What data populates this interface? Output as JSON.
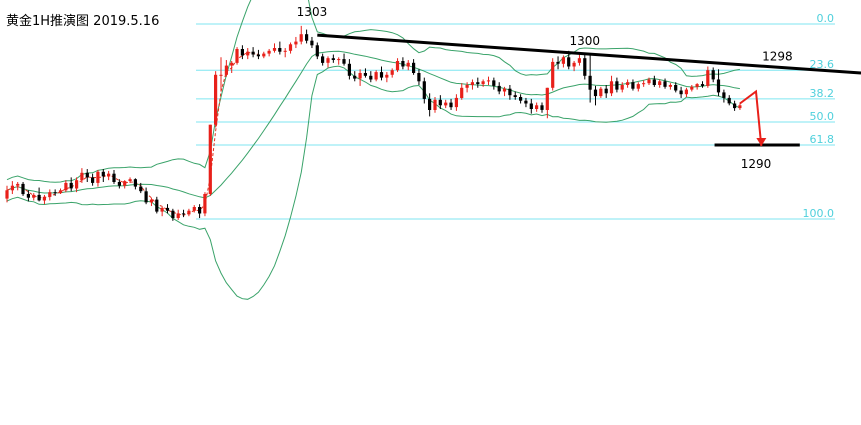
{
  "chart_data": {
    "type": "candlestick",
    "title": "黄金1H推演图 2019.5.16",
    "y_range": [
      1260,
      1306
    ],
    "fib_levels": [
      {
        "label": "0.0",
        "price": 1303.4
      },
      {
        "label": "23.6",
        "price": 1298.4
      },
      {
        "label": "38.2",
        "price": 1295.3
      },
      {
        "label": "50.0",
        "price": 1292.8
      },
      {
        "label": "61.8",
        "price": 1290.3
      },
      {
        "label": "100.0",
        "price": 1282.3
      }
    ],
    "annotations": [
      {
        "text": "1303",
        "price": 1303.6,
        "bar": 57
      },
      {
        "text": "1300",
        "price": 1300.5,
        "bar": 108
      },
      {
        "text": "1298",
        "price": 1298.8,
        "bar": 144
      },
      {
        "text": "1290",
        "price": 1290.0,
        "bar": 140
      }
    ],
    "trendline": {
      "from": {
        "bar": 58,
        "price": 1302.2
      },
      "to": {
        "bar": 152,
        "price": 1298.4
      }
    },
    "support_line": {
      "from_bar": 133,
      "to_bar": 148,
      "price": 1290.3
    },
    "projection": [
      {
        "bar": 137,
        "price": 1294.8
      },
      {
        "bar": 140,
        "price": 1296.1
      },
      {
        "bar": 141,
        "price": 1290.2
      }
    ],
    "candles": [
      [
        1284.5,
        1285.9,
        1284.1,
        1285.4
      ],
      [
        1285.4,
        1286.4,
        1285.0,
        1285.9
      ],
      [
        1285.9,
        1286.3,
        1285.4,
        1286.1
      ],
      [
        1286.1,
        1286.3,
        1284.8,
        1285.0
      ],
      [
        1285.0,
        1285.4,
        1284.2,
        1284.6
      ],
      [
        1284.6,
        1285.1,
        1284.3,
        1284.9
      ],
      [
        1284.9,
        1285.7,
        1284.2,
        1284.3
      ],
      [
        1284.3,
        1284.9,
        1283.9,
        1284.7
      ],
      [
        1284.7,
        1285.5,
        1284.3,
        1285.2
      ],
      [
        1285.2,
        1285.5,
        1284.8,
        1285.1
      ],
      [
        1285.1,
        1285.6,
        1285.0,
        1285.4
      ],
      [
        1285.4,
        1286.5,
        1285.2,
        1286.2
      ],
      [
        1286.2,
        1286.8,
        1285.3,
        1285.6
      ],
      [
        1285.6,
        1286.8,
        1285.2,
        1286.5
      ],
      [
        1286.5,
        1287.8,
        1286.2,
        1287.3
      ],
      [
        1287.3,
        1287.7,
        1286.3,
        1286.8
      ],
      [
        1286.8,
        1287.2,
        1285.9,
        1286.2
      ],
      [
        1286.2,
        1287.6,
        1285.8,
        1287.4
      ],
      [
        1287.4,
        1287.7,
        1286.3,
        1286.9
      ],
      [
        1286.9,
        1287.5,
        1286.5,
        1287.2
      ],
      [
        1287.2,
        1287.6,
        1286.1,
        1286.3
      ],
      [
        1286.3,
        1286.6,
        1285.6,
        1285.9
      ],
      [
        1285.9,
        1286.5,
        1285.6,
        1286.4
      ],
      [
        1286.4,
        1286.8,
        1286.2,
        1286.6
      ],
      [
        1286.6,
        1286.7,
        1285.5,
        1285.8
      ],
      [
        1285.8,
        1286.2,
        1285.1,
        1285.3
      ],
      [
        1285.3,
        1285.7,
        1283.9,
        1284.1
      ],
      [
        1284.1,
        1284.6,
        1283.7,
        1284.4
      ],
      [
        1284.4,
        1284.7,
        1282.9,
        1283.1
      ],
      [
        1283.1,
        1283.6,
        1282.6,
        1283.5
      ],
      [
        1283.5,
        1283.9,
        1282.9,
        1283.2
      ],
      [
        1283.2,
        1283.4,
        1282.1,
        1282.4
      ],
      [
        1282.4,
        1283.3,
        1282.2,
        1282.9
      ],
      [
        1282.9,
        1283.3,
        1282.5,
        1282.8
      ],
      [
        1282.8,
        1283.4,
        1282.6,
        1283.2
      ],
      [
        1283.2,
        1283.8,
        1283.0,
        1283.6
      ],
      [
        1283.6,
        1283.9,
        1282.4,
        1282.9
      ],
      [
        1282.9,
        1285.2,
        1282.6,
        1285.0
      ],
      [
        1285.0,
        1292.5,
        1284.8,
        1292.5
      ],
      [
        1292.5,
        1298.3,
        1292.2,
        1297.9
      ],
      [
        1297.9,
        1299.8,
        1296.1,
        1297.9
      ],
      [
        1297.9,
        1299.5,
        1297.7,
        1298.9
      ],
      [
        1298.9,
        1299.4,
        1298.1,
        1299.2
      ],
      [
        1299.2,
        1300.9,
        1299.0,
        1300.7
      ],
      [
        1300.7,
        1301.1,
        1299.6,
        1300.0
      ],
      [
        1300.0,
        1300.8,
        1299.6,
        1300.4
      ],
      [
        1300.4,
        1300.9,
        1299.8,
        1300.1
      ],
      [
        1300.1,
        1300.6,
        1299.6,
        1299.9
      ],
      [
        1299.9,
        1300.4,
        1299.7,
        1300.2
      ],
      [
        1300.2,
        1300.7,
        1299.9,
        1300.5
      ],
      [
        1300.5,
        1301.3,
        1300.3,
        1300.8
      ],
      [
        1300.8,
        1301.5,
        1300.1,
        1300.4
      ],
      [
        1300.4,
        1300.8,
        1299.8,
        1300.5
      ],
      [
        1300.5,
        1301.4,
        1300.2,
        1301.2
      ],
      [
        1301.2,
        1302.0,
        1300.8,
        1301.5
      ],
      [
        1301.5,
        1303.2,
        1301.2,
        1302.3
      ],
      [
        1302.3,
        1302.8,
        1301.3,
        1301.6
      ],
      [
        1301.6,
        1302.0,
        1300.8,
        1301.1
      ],
      [
        1301.1,
        1301.4,
        1299.6,
        1299.9
      ],
      [
        1299.9,
        1300.2,
        1298.9,
        1299.2
      ],
      [
        1299.2,
        1299.9,
        1298.7,
        1299.7
      ],
      [
        1299.7,
        1300.1,
        1299.2,
        1299.5
      ],
      [
        1299.5,
        1299.8,
        1299.0,
        1299.6
      ],
      [
        1299.6,
        1300.2,
        1298.9,
        1299.1
      ],
      [
        1299.1,
        1299.6,
        1297.4,
        1297.8
      ],
      [
        1297.8,
        1298.3,
        1297.2,
        1297.5
      ],
      [
        1297.5,
        1298.5,
        1296.7,
        1298.1
      ],
      [
        1298.1,
        1298.6,
        1297.6,
        1297.8
      ],
      [
        1297.8,
        1298.3,
        1297.1,
        1297.4
      ],
      [
        1297.4,
        1298.4,
        1297.2,
        1298.2
      ],
      [
        1298.2,
        1298.8,
        1297.3,
        1297.6
      ],
      [
        1297.6,
        1298.2,
        1297.1,
        1297.9
      ],
      [
        1297.9,
        1298.6,
        1297.6,
        1298.4
      ],
      [
        1298.4,
        1299.7,
        1298.2,
        1299.4
      ],
      [
        1299.4,
        1299.8,
        1298.5,
        1298.8
      ],
      [
        1298.8,
        1299.5,
        1298.4,
        1299.2
      ],
      [
        1299.2,
        1299.6,
        1297.9,
        1298.1
      ],
      [
        1298.1,
        1298.5,
        1296.8,
        1297.2
      ],
      [
        1297.2,
        1297.6,
        1294.8,
        1295.3
      ],
      [
        1295.3,
        1295.9,
        1293.4,
        1294.1
      ],
      [
        1294.1,
        1295.5,
        1293.8,
        1295.2
      ],
      [
        1295.2,
        1295.7,
        1294.2,
        1294.6
      ],
      [
        1294.6,
        1295.2,
        1294.3,
        1294.9
      ],
      [
        1294.9,
        1295.3,
        1294.1,
        1294.4
      ],
      [
        1294.4,
        1295.8,
        1294.0,
        1295.4
      ],
      [
        1295.4,
        1297.0,
        1295.2,
        1296.5
      ],
      [
        1296.5,
        1297.1,
        1296.0,
        1296.8
      ],
      [
        1296.8,
        1297.4,
        1296.3,
        1297.1
      ],
      [
        1297.1,
        1297.6,
        1296.5,
        1296.9
      ],
      [
        1296.9,
        1297.4,
        1296.6,
        1297.2
      ],
      [
        1297.2,
        1297.7,
        1296.8,
        1297.3
      ],
      [
        1297.3,
        1297.6,
        1296.3,
        1296.7
      ],
      [
        1296.7,
        1297.1,
        1295.8,
        1296.1
      ],
      [
        1296.1,
        1296.6,
        1295.6,
        1296.4
      ],
      [
        1296.4,
        1296.8,
        1295.2,
        1295.7
      ],
      [
        1295.7,
        1296.1,
        1295.2,
        1295.5
      ],
      [
        1295.5,
        1295.8,
        1294.8,
        1295.1
      ],
      [
        1295.1,
        1295.4,
        1294.4,
        1294.8
      ],
      [
        1294.8,
        1295.3,
        1293.7,
        1294.2
      ],
      [
        1294.2,
        1294.9,
        1293.9,
        1294.6
      ],
      [
        1294.6,
        1294.9,
        1293.8,
        1294.1
      ],
      [
        1294.1,
        1296.5,
        1293.2,
        1296.5
      ],
      [
        1296.5,
        1299.7,
        1296.2,
        1299.3
      ],
      [
        1299.3,
        1299.9,
        1298.5,
        1299.1
      ],
      [
        1299.1,
        1300.0,
        1298.7,
        1299.8
      ],
      [
        1299.8,
        1300.5,
        1298.5,
        1298.8
      ],
      [
        1298.8,
        1299.4,
        1298.3,
        1299.2
      ],
      [
        1299.2,
        1300.2,
        1298.9,
        1299.7
      ],
      [
        1299.7,
        1300.3,
        1297.4,
        1297.8
      ],
      [
        1297.8,
        1300.0,
        1294.9,
        1296.3
      ],
      [
        1296.3,
        1296.7,
        1294.6,
        1295.6
      ],
      [
        1295.6,
        1296.6,
        1295.4,
        1296.4
      ],
      [
        1296.4,
        1296.8,
        1295.4,
        1295.9
      ],
      [
        1295.9,
        1297.8,
        1295.6,
        1297.2
      ],
      [
        1297.2,
        1297.6,
        1296.0,
        1296.3
      ],
      [
        1296.3,
        1297.1,
        1296.0,
        1296.8
      ],
      [
        1296.8,
        1297.4,
        1296.5,
        1297.1
      ],
      [
        1297.1,
        1297.4,
        1296.2,
        1296.4
      ],
      [
        1296.4,
        1297.1,
        1296.1,
        1296.9
      ],
      [
        1296.9,
        1297.3,
        1296.6,
        1297.0
      ],
      [
        1297.0,
        1297.6,
        1296.8,
        1297.4
      ],
      [
        1297.4,
        1297.8,
        1296.6,
        1296.8
      ],
      [
        1296.8,
        1297.4,
        1296.5,
        1297.2
      ],
      [
        1297.2,
        1297.5,
        1296.4,
        1296.6
      ],
      [
        1296.6,
        1297.0,
        1296.3,
        1296.8
      ],
      [
        1296.8,
        1297.1,
        1296.0,
        1296.2
      ],
      [
        1296.2,
        1296.6,
        1295.4,
        1295.8
      ],
      [
        1295.8,
        1296.5,
        1295.5,
        1296.3
      ],
      [
        1296.3,
        1296.8,
        1296.1,
        1296.6
      ],
      [
        1296.6,
        1297.0,
        1296.3,
        1296.9
      ],
      [
        1296.9,
        1297.2,
        1296.5,
        1296.7
      ],
      [
        1296.7,
        1298.8,
        1296.5,
        1298.4
      ],
      [
        1298.4,
        1298.7,
        1297.1,
        1297.4
      ],
      [
        1297.4,
        1298.5,
        1295.6,
        1296.0
      ],
      [
        1296.0,
        1296.3,
        1294.9,
        1295.4
      ],
      [
        1295.4,
        1295.7,
        1294.6,
        1294.8
      ],
      [
        1294.8,
        1295.1,
        1294.0,
        1294.3
      ],
      [
        1294.3,
        1294.8,
        1294.1,
        1294.6
      ]
    ]
  }
}
